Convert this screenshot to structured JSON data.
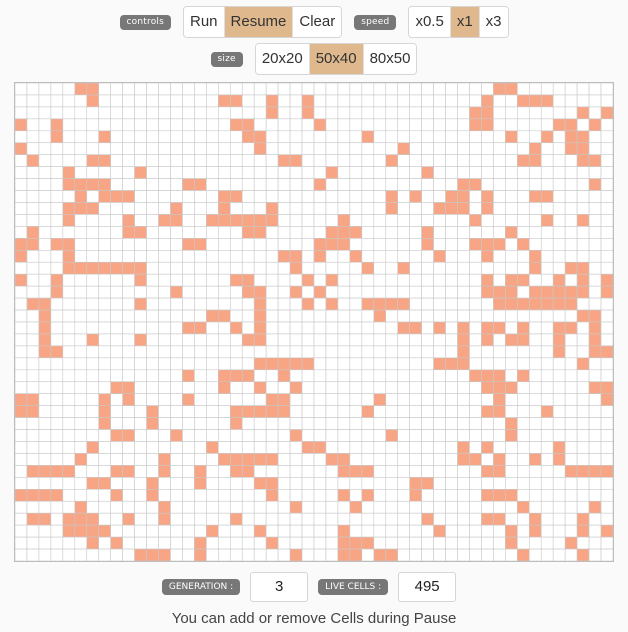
{
  "controls": {
    "label": "controls",
    "buttons": [
      {
        "label": "Run",
        "active": false
      },
      {
        "label": "Resume",
        "active": true
      },
      {
        "label": "Clear",
        "active": false
      }
    ]
  },
  "speed": {
    "label": "speed",
    "buttons": [
      {
        "label": "x0.5",
        "active": false
      },
      {
        "label": "x1",
        "active": true
      },
      {
        "label": "x3",
        "active": false
      }
    ]
  },
  "size": {
    "label": "size",
    "buttons": [
      {
        "label": "20x20",
        "active": false
      },
      {
        "label": "50x40",
        "active": true
      },
      {
        "label": "80x50",
        "active": false
      }
    ]
  },
  "stats": {
    "generation_label": "GENERATION :",
    "generation_value": "3",
    "live_cells_label": "LIVE CELLS :",
    "live_cells_value": "495"
  },
  "note": "You can add or remove Cells during Pause",
  "grid": {
    "cols": 50,
    "rows": 40,
    "live_color": "#f7a585",
    "dead_color": "#ffffff",
    "line_color": "#c8c8c8",
    "live_rows": [
      ".....**.................................**.......",
      "......*..........**..*..*..............*..***.......",
      ".....................*..*.............**.......*.**.",
      "*..*..............**.....*............**.....**.*.*.",
      "...*...*...........**........*...........*..*.**....",
      "*...................*...........*..........*..**..*.",
      ".*....**..............**.......*..........**...**...",
      "....*.....*...............*.......*..................",
      "....****......**.........*...........**.........*..*",
      ".....*.***.......**............*.*..**.*...**.......",
      "....***......*...*...*.........*...***.*..........**.",
      "....*....*..**..******.....*..........*.....*..*.....",
      ".*.......**........**.....***.....*......*..........",
      "**.**.........**.........***......*...***.*.........",
      "*...*.................**.*..*......*...*...*........",
      "....*******............*.....*..*..........*..**....",
      "*..*......*.......**....*.*............*.**..*.*.*...",
      "...*.........*.....**..*.*.............***.*****.*..",
      ".**.......*.........*...*.*..****.......*******...*.",
      "..*.............**..*.........*................**..",
      "..*...........**..*.*...........**.*.*.**.*..**.*...",
      "..*...*...*........**................*.*.**..*..*..",
      "..**.................................*.......*..**...",
      "....................*****..........***.........*...*",
      "..............*..***..*...............***.*........",
      "........**.......*..*..*...............***......**.",
      "**.....*.*....*......**.......*.........*........*.*",
      "**.....*...*......*****......*.........**...*......",
      ".......*...*......*......................*...........",
      "........**...*.........*.......*.........*..........",
      "......*.........*.......**...........*.*.....*......",
      ".....*......*....*****....**.........**.*..*.*.....",
      ".****...**..*..*..**.......***.........**.....****..",
      "......**...*...*....**...........**..................",
      "****....*..*.........*.....*.*...*.....***.........",
      ".....*......*..........*....*.............*.....*.*.",
      ".**.***..*..*.....*...............*....**..*...*....",
      "....****........*...*......*.......*.....*.*...*.*..",
      "......*.*......*.....*.....***...........*....*.....",
      "..........***..*.......*...**.**..........*....*...."
    ]
  }
}
